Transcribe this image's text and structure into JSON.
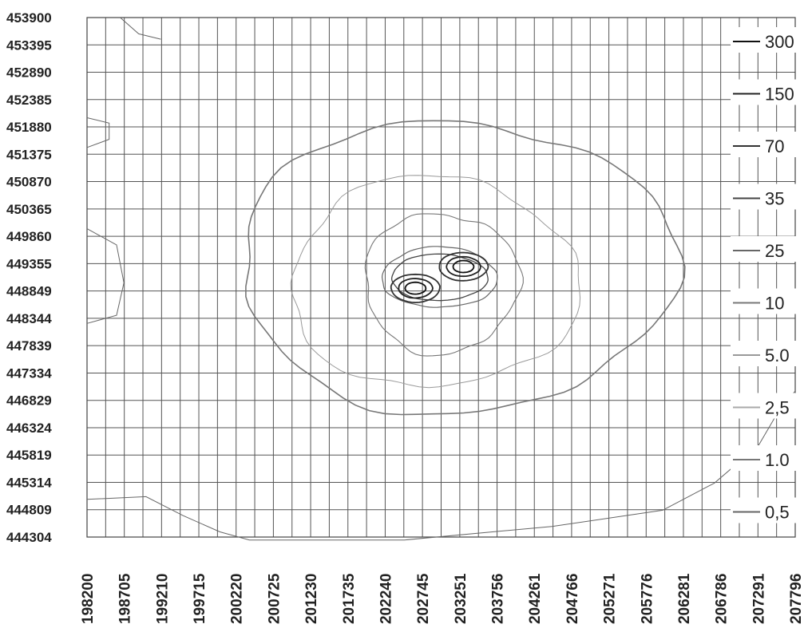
{
  "chart_data": {
    "type": "contour",
    "title": "",
    "xlabel": "",
    "ylabel": "",
    "x_ticks": [
      198200,
      198705,
      199210,
      199715,
      200220,
      200725,
      201230,
      201735,
      202240,
      202745,
      203251,
      203756,
      204261,
      204766,
      205271,
      205776,
      206281,
      206786,
      207291,
      207796
    ],
    "y_ticks": [
      453900,
      453395,
      452890,
      452385,
      451880,
      451375,
      450870,
      450365,
      449860,
      449355,
      448849,
      448344,
      447839,
      447334,
      446829,
      446324,
      445819,
      445314,
      444809,
      444304
    ],
    "xlim": [
      198200,
      207796
    ],
    "ylim": [
      444304,
      453900
    ],
    "grid": true,
    "legend_position": "right",
    "contour_levels": [
      "300",
      "150",
      "70",
      "35",
      "25",
      "10",
      "5.0",
      "2,5",
      "1.0",
      "0,5"
    ],
    "level_colors": [
      "#111111",
      "#222222",
      "#333333",
      "#444444",
      "#666666",
      "#777777",
      "#999999",
      "#aaaaaa",
      "#777777",
      "#666666"
    ],
    "peaks": [
      {
        "x": 202650,
        "y": 448900
      },
      {
        "x": 203300,
        "y": 449300
      }
    ]
  }
}
